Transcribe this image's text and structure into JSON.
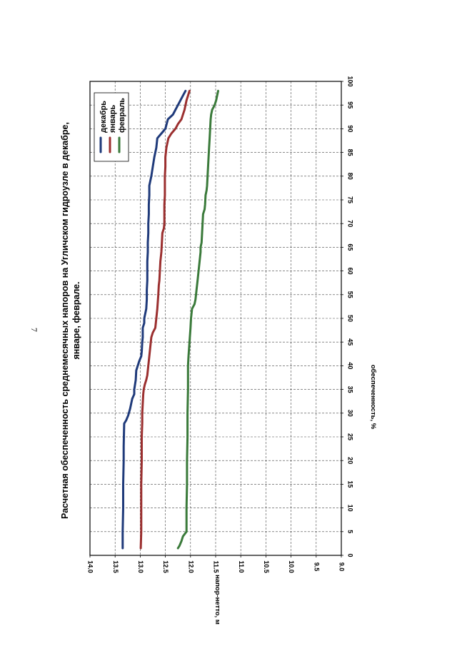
{
  "page_number": "7",
  "chart_data": {
    "type": "line",
    "title_lines": [
      "Расчетная обеспеченность среднемесячных напоров на Угличском гидроузле в декабре,",
      "январе, феврале."
    ],
    "xlabel": "обеспеченность, %",
    "ylabel": "напор-нетто, м",
    "xlim": [
      0,
      100
    ],
    "ylim": [
      9.0,
      14.0
    ],
    "x_ticks": [
      "0",
      "5",
      "10",
      "15",
      "20",
      "25",
      "30",
      "35",
      "40",
      "45",
      "50",
      "55",
      "60",
      "65",
      "70",
      "75",
      "80",
      "85",
      "90",
      "95",
      "100"
    ],
    "y_ticks": [
      "9.0",
      "9.5",
      "10.0",
      "10.5",
      "11.0",
      "11.5",
      "12.0",
      "12.5",
      "13.0",
      "13.5",
      "14.0"
    ],
    "grid": true,
    "legend_position": "top-right",
    "series": [
      {
        "name": "декабрь",
        "color": "#1f3a7a",
        "x": [
          1.5,
          5,
          10,
          15,
          20,
          23,
          27.8,
          28.5,
          29.5,
          31,
          32,
          33,
          34,
          35,
          37,
          39,
          40,
          41,
          42,
          43,
          45,
          46,
          48,
          49,
          50,
          51,
          52,
          54,
          56,
          58,
          60,
          62,
          64,
          66,
          68,
          70,
          72,
          74,
          76,
          78,
          79,
          80,
          82,
          84,
          86,
          88,
          89,
          90,
          92,
          93,
          94,
          95,
          96,
          97,
          98
        ],
        "y": [
          13.35,
          13.35,
          13.34,
          13.34,
          13.33,
          13.33,
          13.32,
          13.28,
          13.24,
          13.2,
          13.18,
          13.16,
          13.12,
          13.12,
          13.09,
          13.08,
          13.05,
          13.02,
          12.98,
          12.97,
          12.96,
          12.95,
          12.95,
          12.92,
          12.92,
          12.9,
          12.88,
          12.87,
          12.87,
          12.86,
          12.86,
          12.86,
          12.85,
          12.85,
          12.84,
          12.84,
          12.83,
          12.83,
          12.82,
          12.82,
          12.8,
          12.78,
          12.75,
          12.72,
          12.68,
          12.66,
          12.58,
          12.5,
          12.45,
          12.35,
          12.3,
          12.25,
          12.2,
          12.15,
          12.1
        ]
      },
      {
        "name": "январь",
        "color": "#9b2f2f",
        "x": [
          1.5,
          5,
          10,
          15,
          20,
          25,
          28,
          30,
          32,
          34,
          35,
          36,
          37,
          38,
          40,
          42,
          44,
          45,
          46,
          47,
          48,
          50,
          52,
          55,
          57,
          58,
          60,
          62,
          64,
          66,
          68,
          69,
          70,
          72,
          74,
          76,
          78,
          80,
          82,
          84,
          86,
          88,
          89,
          90,
          91,
          92,
          94,
          96,
          97,
          98
        ],
        "y": [
          12.99,
          12.98,
          12.98,
          12.98,
          12.97,
          12.97,
          12.96,
          12.96,
          12.95,
          12.94,
          12.93,
          12.91,
          12.88,
          12.86,
          12.84,
          12.82,
          12.8,
          12.79,
          12.78,
          12.75,
          12.7,
          12.68,
          12.66,
          12.64,
          12.63,
          12.62,
          12.61,
          12.6,
          12.58,
          12.57,
          12.56,
          12.53,
          12.52,
          12.52,
          12.52,
          12.51,
          12.51,
          12.51,
          12.5,
          12.5,
          12.48,
          12.44,
          12.38,
          12.3,
          12.25,
          12.18,
          12.12,
          12.08,
          12.05,
          12.02
        ]
      },
      {
        "name": "февраль",
        "color": "#3a7a3a",
        "x": [
          1.5,
          2,
          3,
          4,
          5,
          10,
          15,
          20,
          25,
          30,
          35,
          40,
          42,
          45,
          48,
          50,
          52,
          53,
          54,
          56,
          58,
          60,
          62,
          64,
          65,
          66,
          68,
          70,
          72,
          73,
          74,
          76,
          77,
          78,
          80,
          82,
          84,
          86,
          88,
          90,
          92,
          93,
          94,
          95,
          96,
          97,
          98
        ],
        "y": [
          12.25,
          12.22,
          12.18,
          12.15,
          12.08,
          12.08,
          12.07,
          12.07,
          12.06,
          12.06,
          12.05,
          12.05,
          12.04,
          12.02,
          12.0,
          11.99,
          11.97,
          11.92,
          11.9,
          11.88,
          11.86,
          11.84,
          11.82,
          11.8,
          11.8,
          11.78,
          11.77,
          11.76,
          11.75,
          11.72,
          11.71,
          11.7,
          11.68,
          11.67,
          11.66,
          11.65,
          11.64,
          11.63,
          11.62,
          11.61,
          11.6,
          11.59,
          11.57,
          11.52,
          11.49,
          11.47,
          11.45
        ]
      }
    ]
  }
}
